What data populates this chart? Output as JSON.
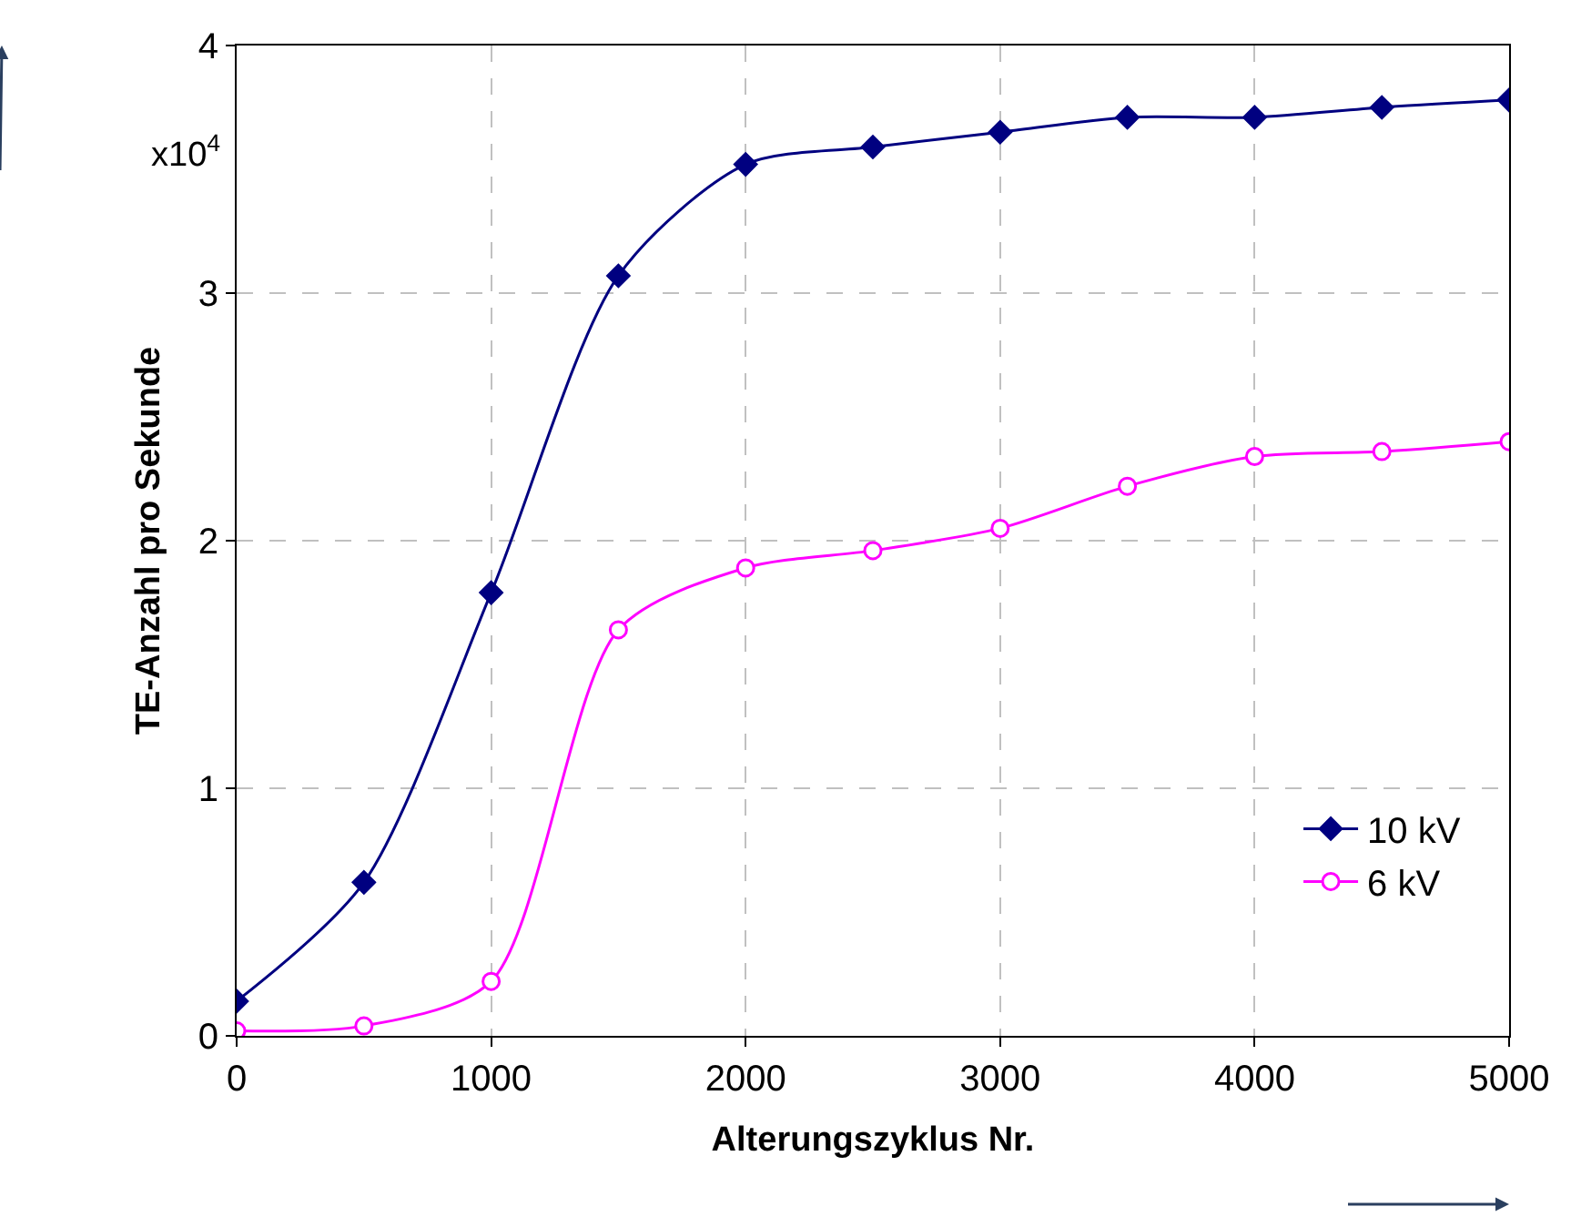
{
  "chart_data": {
    "type": "line",
    "xlabel": "Alterungszyklus Nr.",
    "ylabel": "TE-Anzahl pro Sekunde",
    "annotations": [
      "x10$^{4}$"
    ],
    "x": [
      0,
      500,
      1000,
      1500,
      2000,
      2500,
      3000,
      3500,
      4000,
      4500,
      5000
    ],
    "series": [
      {
        "name": "10 kV",
        "color": "#000080",
        "marker": "diamond",
        "values": [
          0.14,
          0.62,
          1.79,
          3.07,
          3.52,
          3.59,
          3.65,
          3.71,
          3.71,
          3.75,
          3.78
        ]
      },
      {
        "name": "6 kV",
        "color": "#ff00ff",
        "marker": "circle",
        "values": [
          0.02,
          0.04,
          0.22,
          1.64,
          1.89,
          1.96,
          2.05,
          2.22,
          2.34,
          2.36,
          2.4
        ]
      }
    ],
    "xlim": [
      0,
      5000
    ],
    "xticks": [
      0,
      1000,
      2000,
      3000,
      4000,
      5000
    ],
    "ylim": [
      0,
      4
    ],
    "yticks": [
      0,
      1,
      2,
      3,
      4
    ],
    "grid": true,
    "legend": "bottom right",
    "line_style": "solid"
  }
}
